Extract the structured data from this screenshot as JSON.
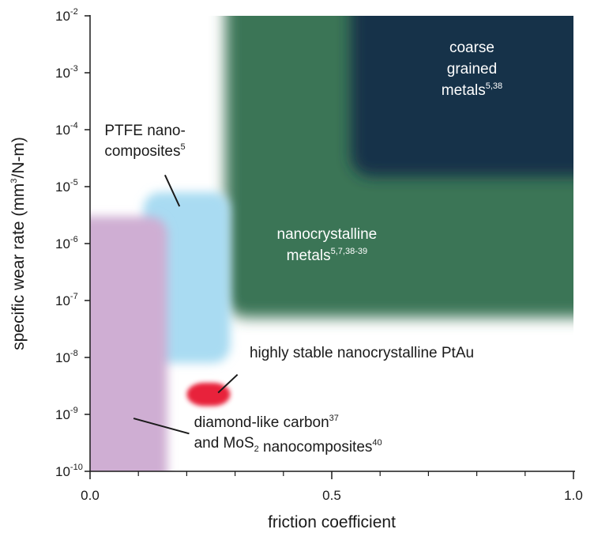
{
  "chart_data": {
    "type": "scatter",
    "xlabel": "friction coefficient",
    "ylabel": {
      "main": "specific wear rate (mm",
      "sup": "3",
      "tail": "/N-m)"
    },
    "xlim": [
      0.0,
      1.0
    ],
    "ylim": [
      1e-10,
      0.01
    ],
    "yscale": "log",
    "grid": false,
    "x_ticks": [
      {
        "value": 0.0,
        "label": "0.0"
      },
      {
        "value": 0.5,
        "label": "0.5"
      },
      {
        "value": 1.0,
        "label": "1.0"
      }
    ],
    "x_minor_ticks": [
      0.1,
      0.2,
      0.3,
      0.4,
      0.6,
      0.7,
      0.8,
      0.9
    ],
    "y_ticks": [
      {
        "value": 1e-10,
        "base": "10",
        "exp": "-10"
      },
      {
        "value": 1e-09,
        "base": "10",
        "exp": "-9"
      },
      {
        "value": 1e-08,
        "base": "10",
        "exp": "-8"
      },
      {
        "value": 1e-07,
        "base": "10",
        "exp": "-7"
      },
      {
        "value": 1e-06,
        "base": "10",
        "exp": "-6"
      },
      {
        "value": 1e-05,
        "base": "10",
        "exp": "-5"
      },
      {
        "value": 0.0001,
        "base": "10",
        "exp": "-4"
      },
      {
        "value": 0.001,
        "base": "10",
        "exp": "-3"
      },
      {
        "value": 0.01,
        "base": "10",
        "exp": "-2"
      }
    ],
    "regions": [
      {
        "id": "nanocrystalline-metals",
        "x": [
          0.28,
          1.0
        ],
        "y": [
          5e-08,
          0.01
        ],
        "color": "#3b7556",
        "label_lines": [
          [
            {
              "t": "nanocrystalline"
            }
          ],
          [
            {
              "t": "metals"
            },
            {
              "t": "5,7,38-39",
              "sup": true
            }
          ]
        ],
        "label_color": "#ffffff",
        "label_at": {
          "x": 0.49,
          "y": 8e-07
        }
      },
      {
        "id": "coarse-grained-metals",
        "x": [
          0.54,
          1.0
        ],
        "y": [
          1.5e-05,
          0.01
        ],
        "color": "#19304a",
        "label_lines": [
          [
            {
              "t": "coarse"
            }
          ],
          [
            {
              "t": "grained"
            }
          ],
          [
            {
              "t": "metals"
            },
            {
              "t": "5,38",
              "sup": true
            }
          ]
        ],
        "label_color": "#ffffff",
        "label_at": {
          "x": 0.79,
          "y": 0.001
        }
      },
      {
        "id": "ptfe-nanocomposites",
        "x": [
          0.11,
          0.29
        ],
        "y": [
          8e-09,
          8e-06
        ],
        "color": "#a9dbf2"
      },
      {
        "id": "diamond-like-carbon",
        "x": [
          0.0,
          0.16
        ],
        "y": [
          1e-10,
          3e-06
        ],
        "color": "#cfaed3"
      },
      {
        "id": "highly-stable-ptau",
        "x": [
          0.2,
          0.29
        ],
        "y": [
          1.4e-09,
          3.6e-09
        ],
        "color": "#e8203a"
      }
    ],
    "annotations": [
      {
        "id": "ptfe",
        "lines": [
          [
            {
              "t": "PTFE nano-"
            }
          ],
          [
            {
              "t": "composites"
            },
            {
              "t": "5",
              "sup": true
            }
          ]
        ],
        "text_at": {
          "x": 0.03,
          "y": 8e-05
        },
        "line_from": {
          "x": 0.155,
          "y": 1.6e-05
        },
        "line_to": {
          "x": 0.185,
          "y": 4.5e-06
        }
      },
      {
        "id": "ptau",
        "lines": [
          [
            {
              "t": "highly stable nanocrystalline PtAu"
            }
          ]
        ],
        "text_at": {
          "x": 0.33,
          "y": 1e-08
        },
        "line_from": {
          "x": 0.305,
          "y": 5e-09
        },
        "line_to": {
          "x": 0.265,
          "y": 2.4e-09
        }
      },
      {
        "id": "dlc",
        "lines": [
          [
            {
              "t": "diamond-like carbon"
            },
            {
              "t": "37",
              "sup": true
            }
          ],
          [
            {
              "t": "and MoS"
            },
            {
              "t": "2",
              "sub": true
            },
            {
              "t": " nanocomposites"
            },
            {
              "t": "40",
              "sup": true
            }
          ]
        ],
        "text_at": {
          "x": 0.215,
          "y": 6e-10
        },
        "line_from": {
          "x": 0.205,
          "y": 4.6e-10
        },
        "line_to": {
          "x": 0.09,
          "y": 8.5e-10
        }
      }
    ]
  }
}
